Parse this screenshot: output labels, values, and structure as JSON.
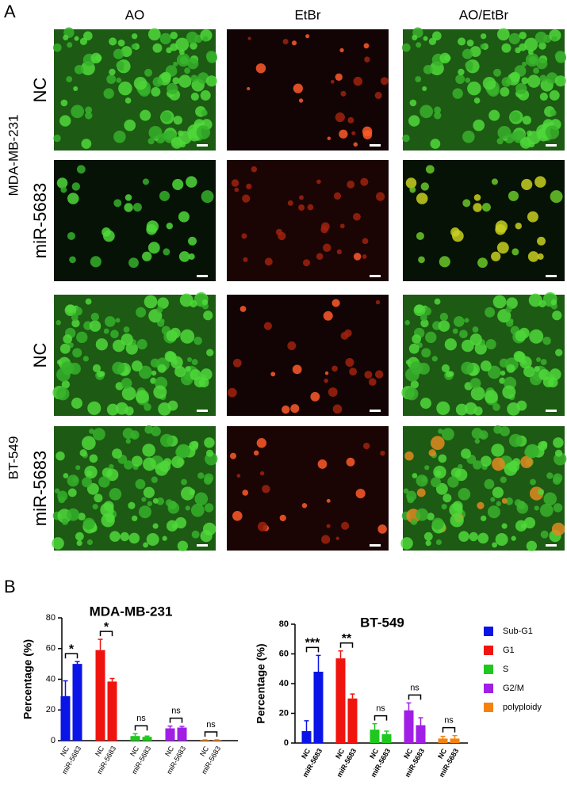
{
  "panel_a": {
    "label": "A",
    "columns": [
      "AO",
      "EtBr",
      "AO/EtBr"
    ],
    "groups": [
      {
        "name": "MDA-MB-231",
        "rows": [
          "NC",
          "miR-5683"
        ]
      },
      {
        "name": "BT-549",
        "rows": [
          "NC",
          "miR-5683"
        ]
      }
    ]
  },
  "panel_b": {
    "label": "B"
  },
  "chart_data": [
    {
      "type": "bar",
      "title": "MDA-MB-231",
      "y_label": "Percentage (%)",
      "categories": [
        "NC",
        "miR-5683"
      ],
      "ylim": [
        0,
        80
      ],
      "yticks": [
        0,
        20,
        40,
        60,
        80
      ],
      "series": [
        {
          "color": "#0a14e6",
          "values": [
            29,
            50
          ],
          "errors": [
            10,
            1.5
          ],
          "significance": "*"
        },
        {
          "color": "#f0140f",
          "values": [
            59,
            38.5
          ],
          "errors": [
            7,
            2
          ],
          "significance": "*"
        },
        {
          "color": "#1ec81e",
          "values": [
            3,
            2.5
          ],
          "errors": [
            1.5,
            0.5
          ],
          "significance": "ns"
        },
        {
          "color": "#a01ee6",
          "values": [
            8,
            8.5
          ],
          "errors": [
            1.5,
            0.8
          ],
          "significance": "ns"
        },
        {
          "color": "#f5820f",
          "values": [
            0.3,
            0.3
          ],
          "errors": [
            0.2,
            0.2
          ],
          "significance": "ns"
        }
      ]
    },
    {
      "type": "bar",
      "title": "BT-549",
      "y_label": "Percentage (%)",
      "categories": [
        "NC",
        "miR-5683"
      ],
      "ylim": [
        0,
        80
      ],
      "yticks": [
        0,
        20,
        40,
        60,
        80
      ],
      "legend": "right",
      "series": [
        {
          "name": "Sub-G1",
          "color": "#0a14e6",
          "values": [
            8,
            48
          ],
          "errors": [
            7,
            11
          ],
          "significance": "***"
        },
        {
          "name": "G1",
          "color": "#f0140f",
          "values": [
            57,
            30
          ],
          "errors": [
            5,
            3
          ],
          "significance": "**"
        },
        {
          "name": "S",
          "color": "#1ec81e",
          "values": [
            9,
            6
          ],
          "errors": [
            4,
            2
          ],
          "significance": "ns"
        },
        {
          "name": "G2/M",
          "color": "#a01ee6",
          "values": [
            22,
            12
          ],
          "errors": [
            5,
            5
          ],
          "significance": "ns"
        },
        {
          "name": "polyploidy",
          "color": "#f5820f",
          "values": [
            3,
            3
          ],
          "errors": [
            1.5,
            2
          ],
          "significance": "ns"
        }
      ]
    }
  ]
}
